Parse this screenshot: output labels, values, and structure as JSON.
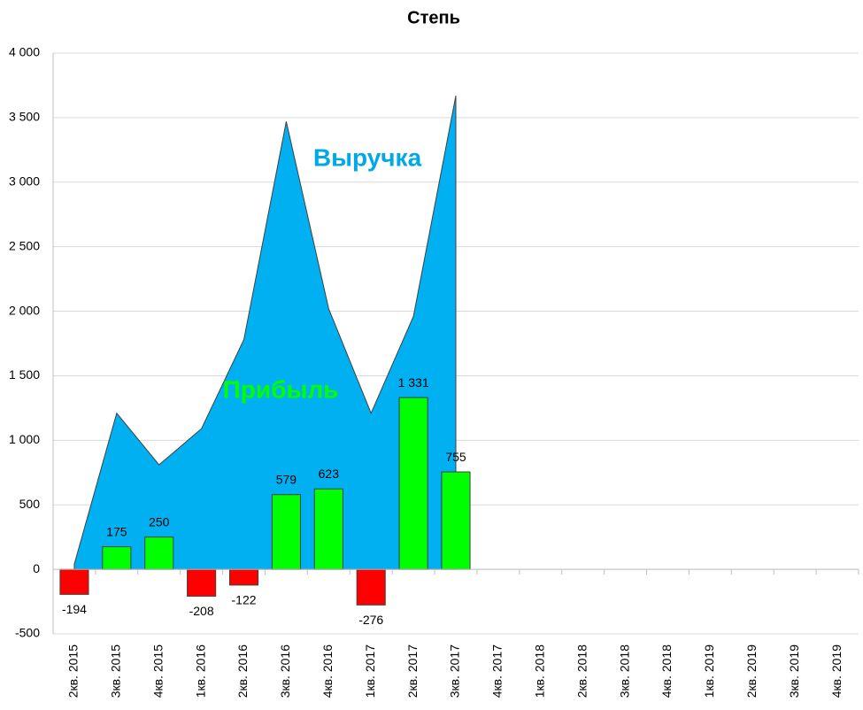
{
  "chart_data": {
    "type": "area-bar",
    "title": "Степь",
    "categories": [
      "2кв. 2015",
      "3кв. 2015",
      "4кв. 2015",
      "1кв. 2016",
      "2кв. 2016",
      "3кв. 2016",
      "4кв. 2016",
      "1кв. 2017",
      "2кв. 2017",
      "3кв. 2017",
      "4кв. 2017",
      "1кв. 2018",
      "2кв. 2018",
      "3кв. 2018",
      "4кв. 2018",
      "1кв. 2019",
      "2кв. 2019",
      "3кв. 2019",
      "4кв. 2019"
    ],
    "series": [
      {
        "name": "Выручка",
        "kind": "area",
        "color": "#00b0f0",
        "values": [
          40,
          1210,
          810,
          1090,
          1780,
          3470,
          2020,
          1210,
          1960,
          3670,
          null,
          null,
          null,
          null,
          null,
          null,
          null,
          null,
          null
        ]
      },
      {
        "name": "Прибыль",
        "kind": "bar",
        "color": "#00ff00",
        "negative_color": "#ff0000",
        "values": [
          -194,
          175,
          250,
          -208,
          -122,
          579,
          623,
          -276,
          1331,
          755,
          null,
          null,
          null,
          null,
          null,
          null,
          null,
          null,
          null
        ],
        "value_labels": [
          "-194",
          "175",
          "250",
          "-208",
          "-122",
          "579",
          "623",
          "-276",
          "1 331",
          "755",
          null,
          null,
          null,
          null,
          null,
          null,
          null,
          null,
          null
        ]
      }
    ],
    "ylim": [
      -500,
      4000
    ],
    "yticks": [
      -500,
      0,
      500,
      {
        "value": 1000,
        "label": "1 000"
      },
      {
        "value": 1500,
        "label": "1 500"
      },
      {
        "value": 2000,
        "label": "2 000"
      },
      {
        "value": 2500,
        "label": "2 500"
      },
      {
        "value": 3000,
        "label": "3 000"
      },
      {
        "value": 3500,
        "label": "3 500"
      },
      {
        "value": 4000,
        "label": "4 000"
      }
    ],
    "grid": true
  }
}
